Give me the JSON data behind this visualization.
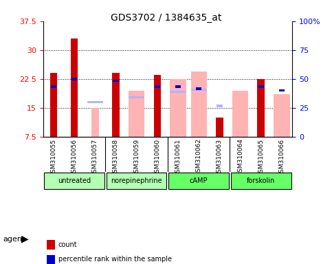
{
  "title": "GDS3702 / 1384635_at",
  "samples": [
    "GSM310055",
    "GSM310056",
    "GSM310057",
    "GSM310058",
    "GSM310059",
    "GSM310060",
    "GSM310061",
    "GSM310062",
    "GSM310063",
    "GSM310064",
    "GSM310065",
    "GSM310066"
  ],
  "groups": [
    {
      "label": "untreated",
      "color": "#b3ffb3",
      "indices": [
        0,
        1,
        2
      ]
    },
    {
      "label": "norepinephrine",
      "color": "#b3ffb3",
      "indices": [
        3,
        4,
        5
      ]
    },
    {
      "label": "cAMP",
      "color": "#66ff66",
      "indices": [
        6,
        7,
        8
      ]
    },
    {
      "label": "forskolin",
      "color": "#66ff66",
      "indices": [
        9,
        10,
        11
      ]
    }
  ],
  "count_values": [
    24.0,
    33.0,
    null,
    24.0,
    null,
    23.5,
    null,
    null,
    12.5,
    null,
    22.5,
    null
  ],
  "count_absent_values": [
    null,
    null,
    15.0,
    null,
    null,
    null,
    null,
    null,
    null,
    null,
    null,
    null
  ],
  "value_absent": [
    null,
    null,
    null,
    null,
    19.5,
    null,
    22.5,
    24.5,
    null,
    19.5,
    null,
    18.5
  ],
  "rank_absent": [
    null,
    null,
    16.2,
    null,
    17.5,
    null,
    19.0,
    19.5,
    null,
    null,
    null,
    null
  ],
  "percentile_rank": [
    20.5,
    22.5,
    null,
    22.0,
    null,
    20.5,
    20.5,
    20.0,
    15.5,
    null,
    20.5,
    19.5
  ],
  "percentile_rank_absent": [
    null,
    null,
    null,
    null,
    null,
    null,
    null,
    null,
    15.5,
    null,
    null,
    null
  ],
  "ylim": [
    7.5,
    37.5
  ],
  "yticks": [
    7.5,
    15.0,
    22.5,
    30.0,
    37.5
  ],
  "ytick_labels": [
    "7.5",
    "15",
    "22.5",
    "30",
    "37.5"
  ],
  "right_yticks": [
    0,
    25,
    50,
    75,
    100
  ],
  "bar_width": 0.35,
  "count_color": "#cc0000",
  "percentile_color": "#0000cc",
  "value_absent_color": "#ffb3b3",
  "rank_absent_color": "#b3b3ff",
  "background_color": "#ffffff",
  "plot_bg_color": "#ffffff",
  "agent_label": "agent",
  "group_bg_color": "#d0d0d0"
}
